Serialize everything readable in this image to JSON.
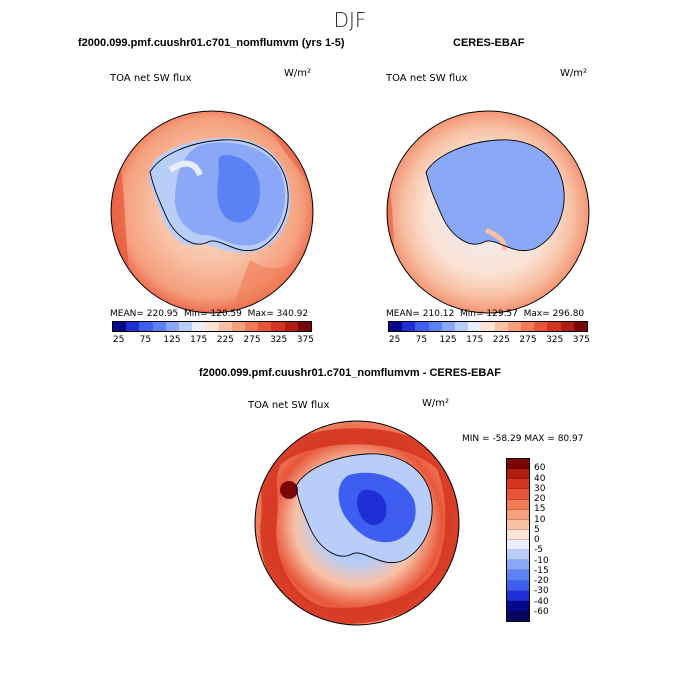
{
  "season": "DJF",
  "panels": {
    "model": {
      "title": "f2000.099.pmf.cuushr01.c701_nomflumvm (yrs 1-5)",
      "variable": "TOA net SW flux",
      "units": "W/m²",
      "mean_label": "MEAN=",
      "mean": "220.95",
      "min_label": "Min=",
      "min": "120.59",
      "max_label": "Max=",
      "max": "340.92"
    },
    "obs": {
      "title": "CERES-EBAF",
      "variable": "TOA net SW flux",
      "units": "W/m²",
      "mean_label": "MEAN=",
      "mean": "210.12",
      "min_label": "Min=",
      "min": "129.57",
      "max_label": "Max=",
      "max": "296.80"
    },
    "diff": {
      "title": "f2000.099.pmf.cuushr01.c701_nomflumvm - CERES-EBAF",
      "variable": "TOA net SW flux",
      "units": "W/m²",
      "min_label": "MIN =",
      "min": "-58.29",
      "max_label": "MAX =",
      "max": "80.97"
    }
  },
  "colorbar_abs": {
    "ticks": [
      "25",
      "75",
      "125",
      "175",
      "225",
      "275",
      "325",
      "375"
    ],
    "colors": [
      "#08088a",
      "#1f2fd6",
      "#3d5ef0",
      "#5b82f5",
      "#8aa8f6",
      "#b8cdf7",
      "#e8eefb",
      "#fbe3d6",
      "#f8c1a6",
      "#f59f7c",
      "#f07b56",
      "#e8563a",
      "#d43420",
      "#b01d12",
      "#7a0707"
    ]
  },
  "colorbar_diff": {
    "ticks": [
      "60",
      "40",
      "30",
      "20",
      "15",
      "10",
      "5",
      "0",
      "-5",
      "-10",
      "-15",
      "-20",
      "-30",
      "-40",
      "-60"
    ],
    "colors": [
      "#7a0707",
      "#b01d12",
      "#d43420",
      "#e8563a",
      "#f07b56",
      "#f59f7c",
      "#f8c1a6",
      "#fbe3d6",
      "#e8eefb",
      "#b8cdf7",
      "#8aa8f6",
      "#5b82f5",
      "#3d5ef0",
      "#1f2fd6",
      "#08088a",
      "#050560"
    ]
  }
}
